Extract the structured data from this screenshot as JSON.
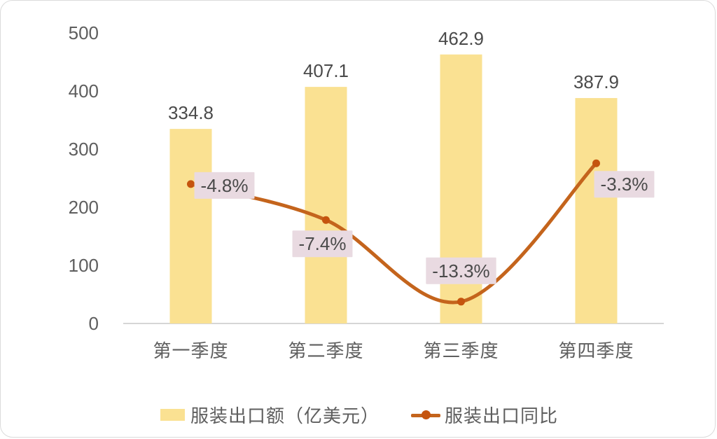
{
  "chart_data": {
    "type": "bar+line",
    "categories": [
      "第一季度",
      "第二季度",
      "第三季度",
      "第四季度"
    ],
    "series": [
      {
        "name": "服装出口额（亿美元）",
        "type": "bar",
        "values": [
          334.8,
          407.1,
          462.9,
          387.9
        ],
        "labels": [
          "334.8",
          "407.1",
          "462.9",
          "387.9"
        ]
      },
      {
        "name": "服装出口同比",
        "type": "line",
        "values": [
          -4.8,
          -7.4,
          -13.3,
          -3.3
        ],
        "labels": [
          "-4.8%",
          "-7.4%",
          "-13.3%",
          "-3.3%"
        ],
        "unit": "%"
      }
    ],
    "yticks": [
      500,
      400,
      300,
      200,
      100,
      0
    ],
    "primary_ylim": [
      0,
      500
    ],
    "secondary_axis_visible": false,
    "grid": false,
    "title": "",
    "xlabel": "",
    "ylabel": "",
    "legend_position": "bottom"
  },
  "colors": {
    "bar": "#FAE192",
    "line": "#C4641C",
    "marker": "#C5540E",
    "label_bg": "#E9DAE1",
    "pct_text": "#4a4a4a",
    "value_text": "#4a4a4a",
    "tick_text": "#5e5e5e",
    "axis": "#c9c9c9",
    "card_border": "#dbdbdb"
  }
}
